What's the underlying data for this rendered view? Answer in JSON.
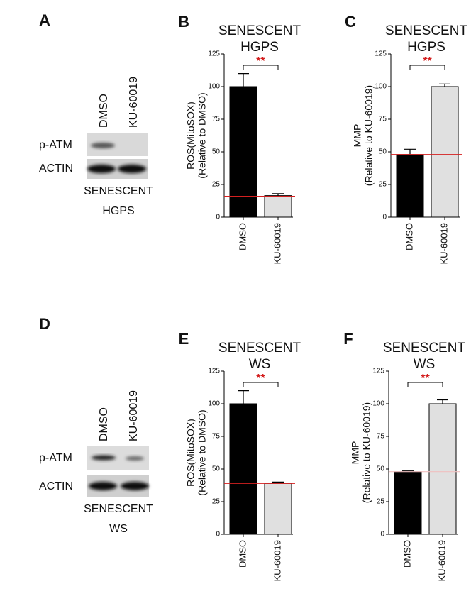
{
  "blots": [
    {
      "label": "A",
      "lanes": [
        "DMSO",
        "KU-60019"
      ],
      "rows": [
        "p-ATM",
        "ACTIN"
      ],
      "caption": [
        "SENESCENT",
        "HGPS"
      ]
    },
    {
      "label": "D",
      "lanes": [
        "DMSO",
        "KU-60019"
      ],
      "rows": [
        "p-ATM",
        "ACTIN"
      ],
      "caption": [
        "SENESCENT",
        "WS"
      ]
    }
  ],
  "chart_data": [
    {
      "type": "bar",
      "label": "B",
      "title": [
        "SENESCENT",
        "HGPS"
      ],
      "ylabel": [
        "ROS(MitoSOX)",
        "(Relative to DMSO)"
      ],
      "categories": [
        "DMSO",
        "KU-60019"
      ],
      "values": [
        100,
        16.5
      ],
      "errors": [
        10,
        1.5
      ],
      "colors": [
        "#000000",
        "#e0e0e0"
      ],
      "ylim": [
        0,
        125
      ],
      "yticks": [
        0,
        25,
        50,
        75,
        100,
        125
      ],
      "reference_line": 16,
      "reference_color": "#d42020",
      "significance": "**"
    },
    {
      "type": "bar",
      "label": "C",
      "title": [
        "SENESCENT",
        "HGPS"
      ],
      "ylabel": [
        "MMP",
        "(Relative to KU-60019)"
      ],
      "categories": [
        "DMSO",
        "KU-60019"
      ],
      "values": [
        48,
        100
      ],
      "errors": [
        4,
        2
      ],
      "colors": [
        "#000000",
        "#e0e0e0"
      ],
      "ylim": [
        0,
        125
      ],
      "yticks": [
        0,
        25,
        50,
        75,
        100,
        125
      ],
      "reference_line": 48,
      "reference_color": "#d42020",
      "significance": "**"
    },
    {
      "type": "bar",
      "label": "E",
      "title": [
        "SENESCENT",
        "WS"
      ],
      "ylabel": [
        "ROS(MitoSOX)",
        "(Relative to DMSO)"
      ],
      "categories": [
        "DMSO",
        "KU-60019"
      ],
      "values": [
        100,
        39
      ],
      "errors": [
        10,
        1
      ],
      "colors": [
        "#000000",
        "#e0e0e0"
      ],
      "ylim": [
        0,
        125
      ],
      "yticks": [
        0,
        25,
        50,
        75,
        100,
        125
      ],
      "reference_line": 39,
      "reference_color": "#d42020",
      "significance": "**"
    },
    {
      "type": "bar",
      "label": "F",
      "title": [
        "SENESCENT",
        "WS"
      ],
      "ylabel": [
        "MMP",
        "(Relative to KU-60019)"
      ],
      "categories": [
        "DMSO",
        "KU-60019"
      ],
      "values": [
        48,
        100
      ],
      "errors": [
        0.5,
        3
      ],
      "colors": [
        "#000000",
        "#e0e0e0"
      ],
      "ylim": [
        0,
        125
      ],
      "yticks": [
        0,
        25,
        50,
        75,
        100,
        125
      ],
      "reference_line": 48,
      "reference_color": "#f0c0c0",
      "significance": "**"
    }
  ]
}
